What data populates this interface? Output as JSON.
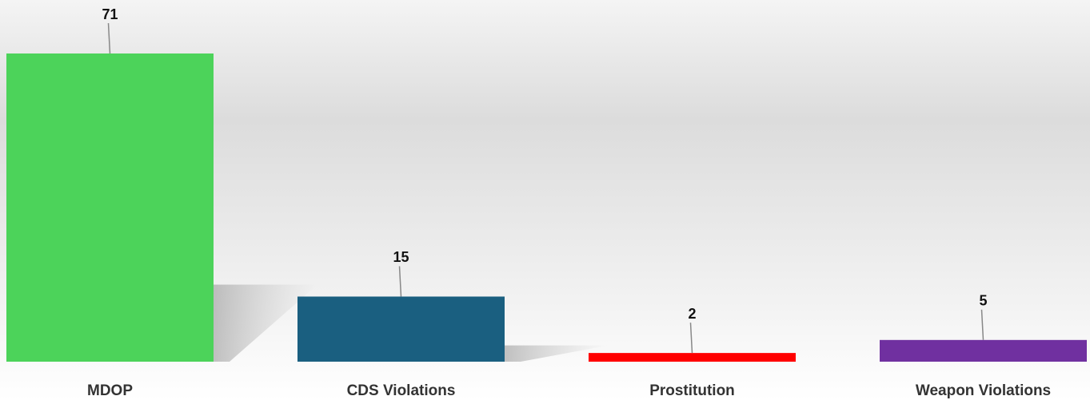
{
  "chart_data": {
    "type": "bar",
    "categories": [
      "MDOP",
      "CDS Violations",
      "Prostitution",
      "Weapon Violations"
    ],
    "values": [
      71,
      15,
      2,
      5
    ],
    "colors": [
      "#4cd35a",
      "#1a5f80",
      "#ff0000",
      "#7030a0"
    ]
  }
}
